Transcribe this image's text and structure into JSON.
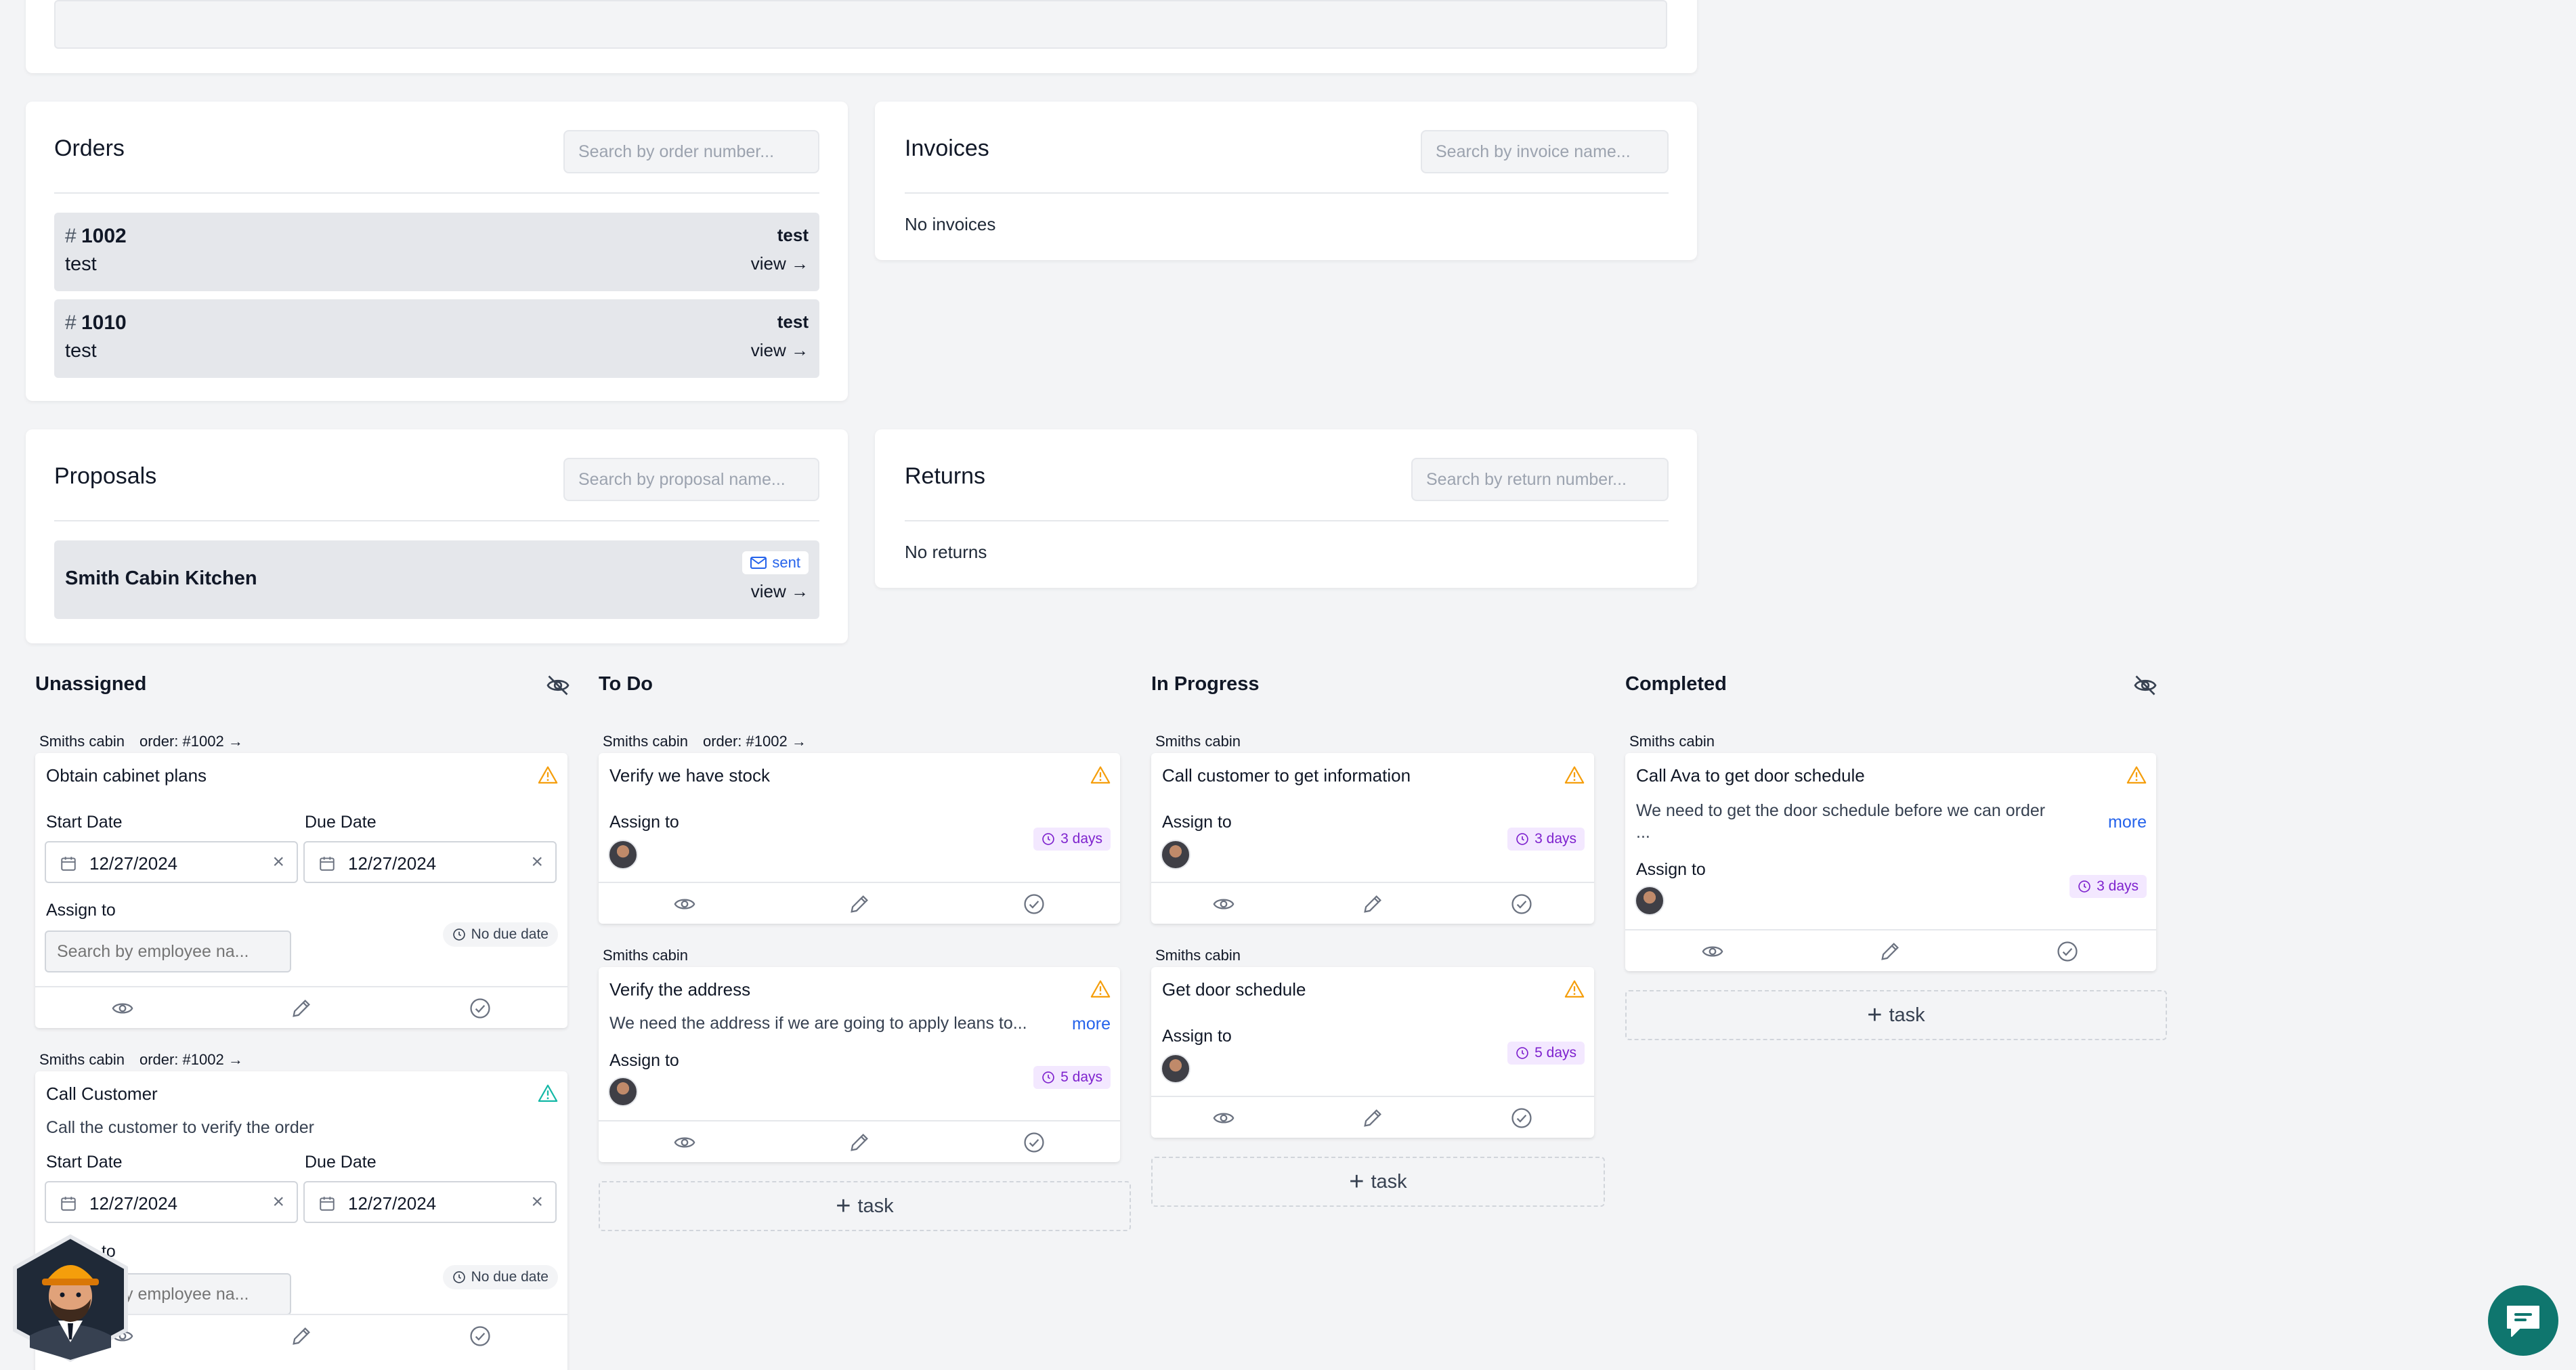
{
  "orders": {
    "title": "Orders",
    "search_placeholder": "Search by order number...",
    "items": [
      {
        "number": "1002",
        "desc": "test",
        "tag": "test",
        "view": "view →"
      },
      {
        "number": "1010",
        "desc": "test",
        "tag": "test",
        "view": "view →"
      }
    ]
  },
  "invoices": {
    "title": "Invoices",
    "search_placeholder": "Search by invoice name...",
    "empty": "No invoices"
  },
  "proposals": {
    "title": "Proposals",
    "search_placeholder": "Search by proposal name...",
    "items": [
      {
        "name": "Smith Cabin Kitchen",
        "status": "sent",
        "view": "view →"
      }
    ]
  },
  "returns": {
    "title": "Returns",
    "search_placeholder": "Search by return number...",
    "empty": "No returns"
  },
  "board": {
    "columns": {
      "unassigned": "Unassigned",
      "todo": "To Do",
      "in_progress": "In Progress",
      "completed": "Completed"
    },
    "add_task_label": "task",
    "labels": {
      "start_date": "Start Date",
      "due_date": "Due Date",
      "assign_to": "Assign to",
      "employee_placeholder": "Search by employee na...",
      "no_due": "No due date",
      "more": "more"
    },
    "unassigned_tasks": [
      {
        "project": "Smiths cabin",
        "order": "order: #1002 →",
        "title": "Obtain cabinet plans",
        "start": "12/27/2024",
        "due": "12/27/2024"
      },
      {
        "project": "Smiths cabin",
        "order": "order: #1002 →",
        "title": "Call Customer",
        "description": "Call the customer to verify the order",
        "start": "12/27/2024",
        "due": "12/27/2024"
      }
    ],
    "todo_tasks": [
      {
        "project": "Smiths cabin",
        "order": "order: #1002 →",
        "title": "Verify we have stock",
        "days": "3 days"
      },
      {
        "project": "Smiths cabin",
        "title": "Verify the address",
        "description": "We need the address if we are going to apply leans to...",
        "days": "5 days"
      }
    ],
    "in_progress_tasks": [
      {
        "project": "Smiths cabin",
        "title": "Call customer to get information",
        "days": "3 days"
      },
      {
        "project": "Smiths cabin",
        "title": "Get door schedule",
        "days": "5 days"
      }
    ],
    "completed_tasks": [
      {
        "project": "Smiths cabin",
        "title": "Call Ava to get door schedule",
        "description": "We need to get the door schedule before we can order",
        "description_cont": "...",
        "days": "3 days"
      }
    ]
  },
  "colors": {
    "warning": "#f59e0b",
    "success_teal": "#14b8a6",
    "link": "#2563eb",
    "days_badge_bg": "#f3e8ff",
    "chat": "#0f766e"
  }
}
